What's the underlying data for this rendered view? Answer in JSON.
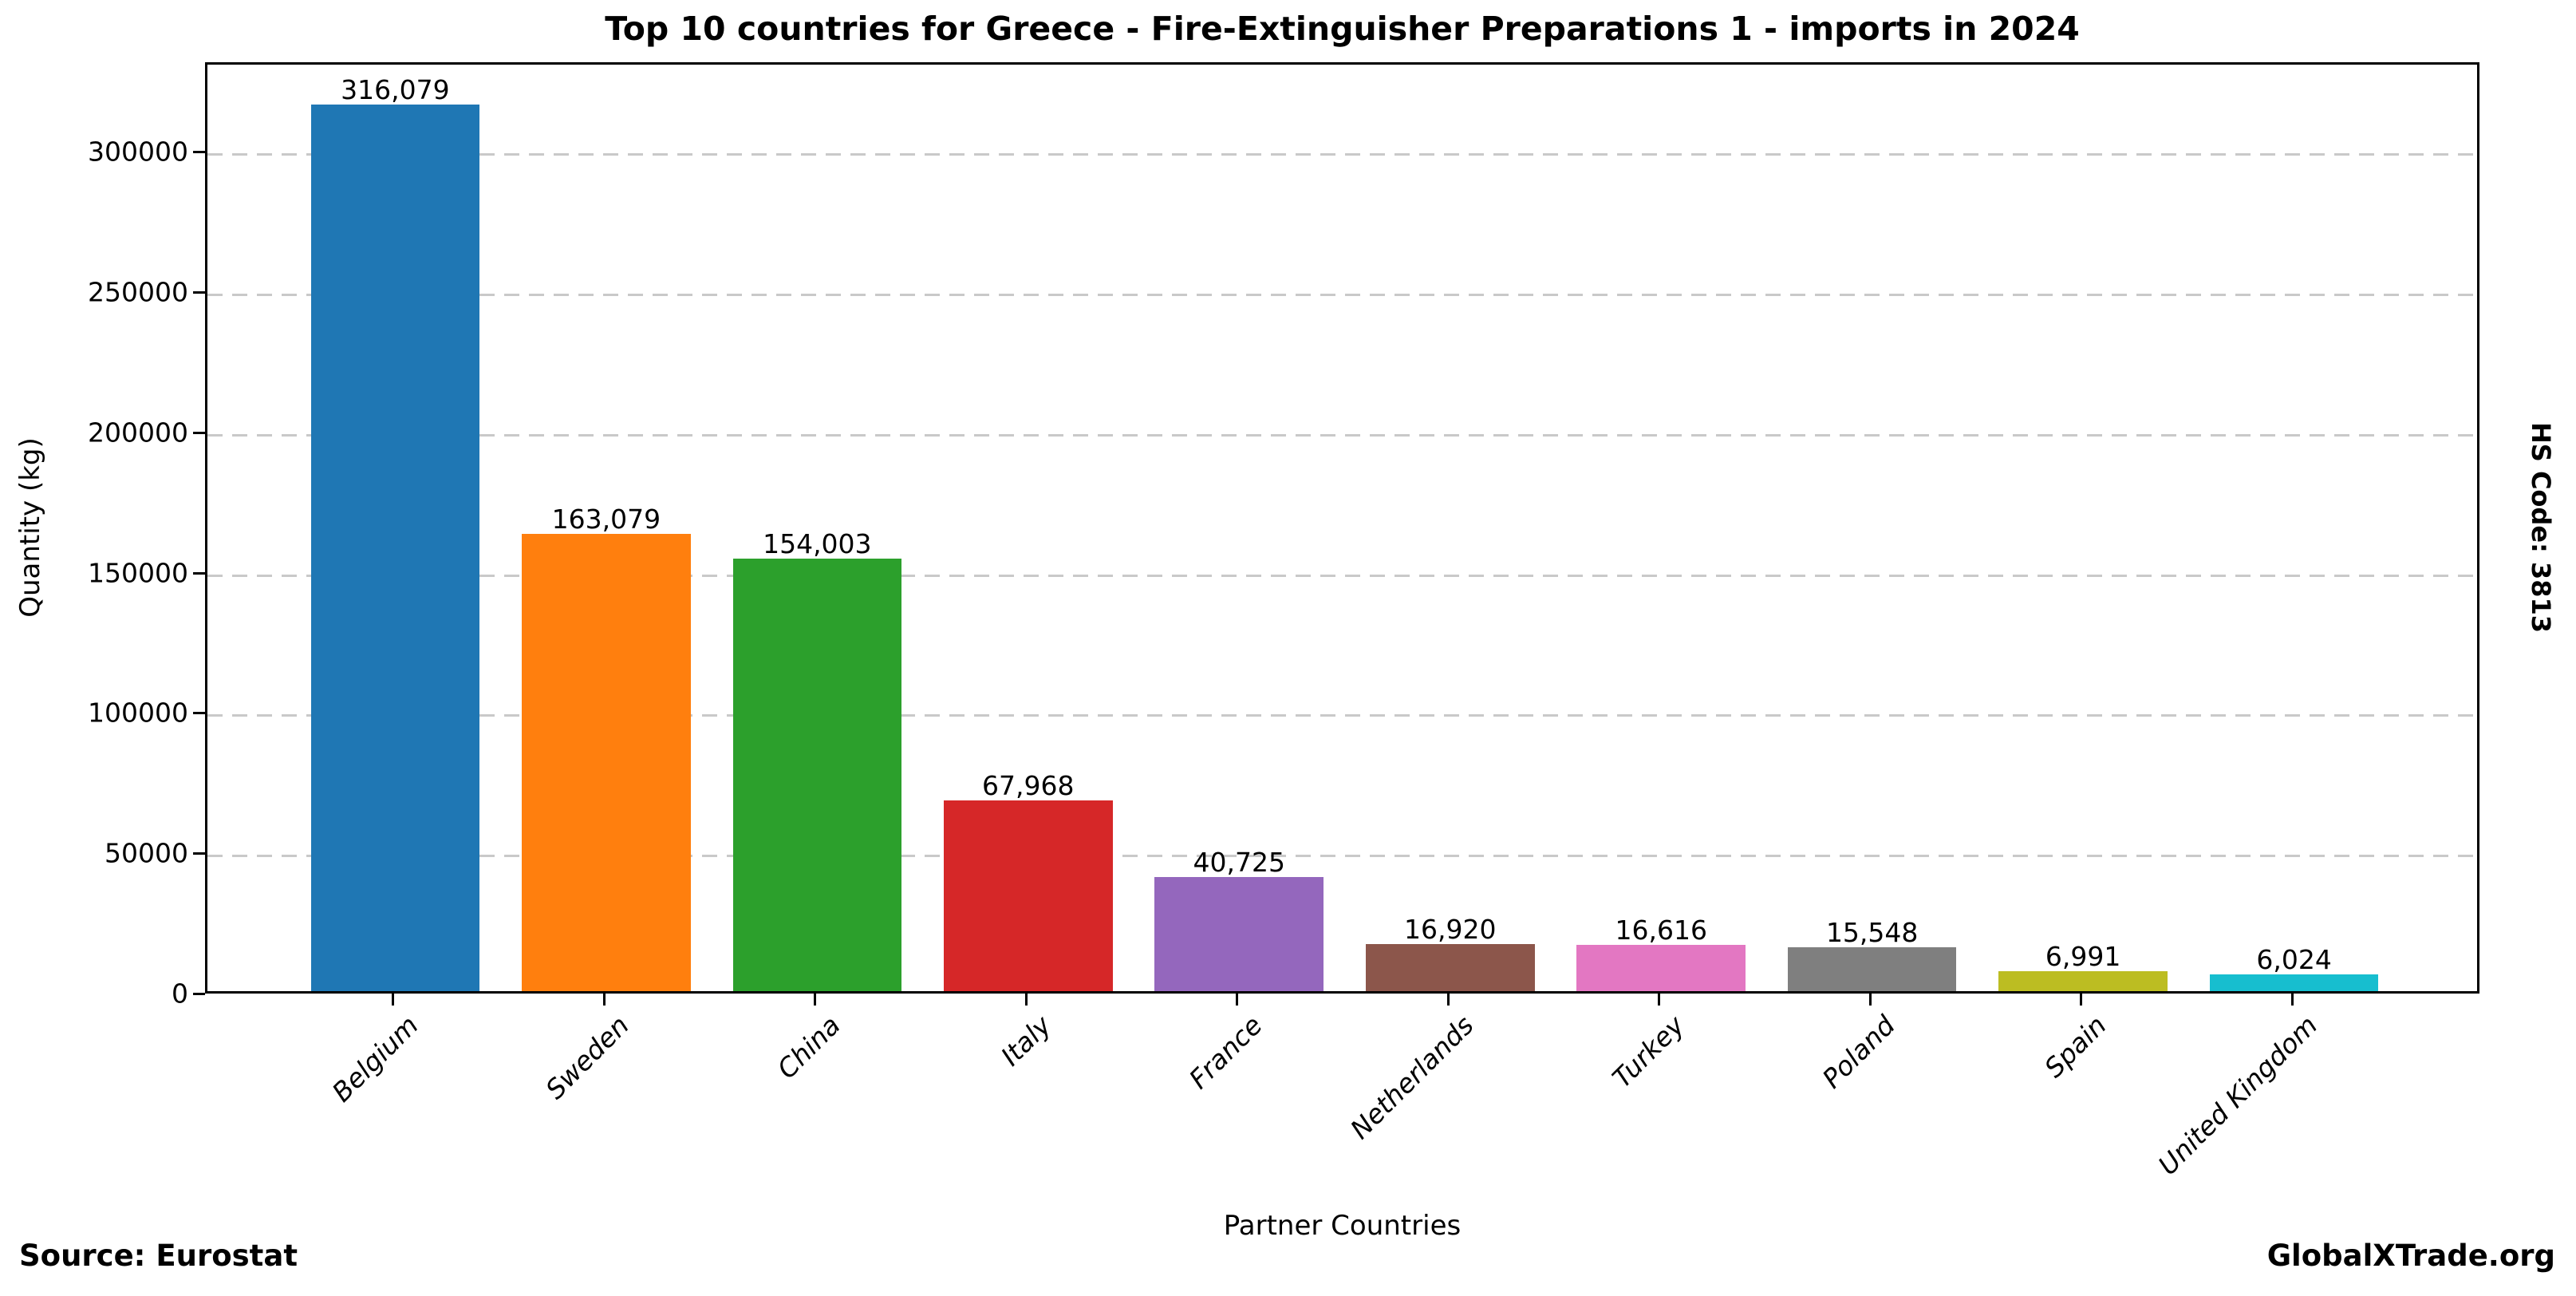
{
  "page": {
    "source_credit": "Source: Eurostat",
    "brand_credit": "GlobalXTrade.org",
    "hs_code_label": "HS Code: 3813"
  },
  "chart_data": {
    "type": "bar",
    "title": "Top 10 countries for Greece - Fire-Extinguisher Preparations 1 - imports in 2024",
    "xlabel": "Partner Countries",
    "ylabel": "Quantity (kg)",
    "categories": [
      "Belgium",
      "Sweden",
      "China",
      "Italy",
      "France",
      "Netherlands",
      "Turkey",
      "Poland",
      "Spain",
      "United Kingdom"
    ],
    "values": [
      316079,
      163079,
      154003,
      67968,
      40725,
      16920,
      16616,
      15548,
      6991,
      6024
    ],
    "value_labels": [
      "316,079",
      "163,079",
      "154,003",
      "67,968",
      "40,725",
      "16,920",
      "16,616",
      "15,548",
      "6,991",
      "6,024"
    ],
    "bar_colors": [
      "#1f77b4",
      "#ff7f0e",
      "#2ca02c",
      "#d62728",
      "#9467bd",
      "#8c564b",
      "#e377c2",
      "#7f7f7f",
      "#bcbd22",
      "#17becf"
    ],
    "yticks": [
      0,
      50000,
      100000,
      150000,
      200000,
      250000,
      300000
    ],
    "ytick_labels": [
      "0",
      "50000",
      "100000",
      "150000",
      "200000",
      "250000",
      "300000"
    ],
    "ylim": [
      0,
      331883
    ],
    "grid": "horizontal dashed gray, behind bars",
    "legend": "none",
    "xtick_style": "italic, rotated 45 degrees, right-anchored"
  }
}
